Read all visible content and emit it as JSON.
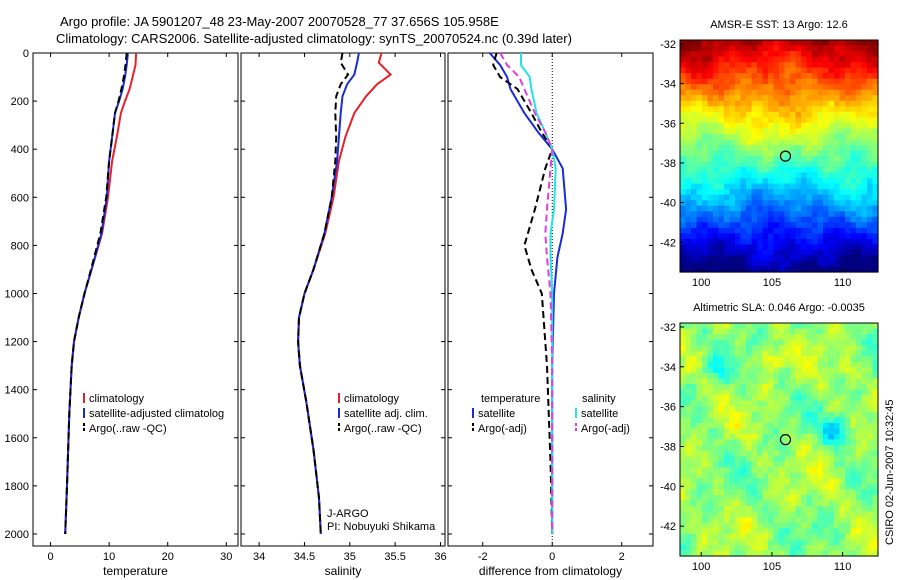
{
  "title_line1": "Argo profile: JA 5901207_48 23-May-2007 20070528_77 37.656S 105.958E",
  "title_line2": "Climatology: CARS2006. Satellite-adjusted climatology: synTS_20070524.nc (0.39d later)",
  "side_label": "CSIRO 02-Jun-2007 10:32:45",
  "colors": {
    "climatology": "#e8202a",
    "satellite": "#1a2bd6",
    "argo": "#000000",
    "sal_satellite": "#22e4e4",
    "sal_argo": "#e43ce0",
    "zero_line": "#000000"
  },
  "chart_data": [
    {
      "type": "line",
      "xlabel": "temperature",
      "xticks": [
        "0",
        "10",
        "20",
        "30"
      ],
      "xlim": [
        -3,
        32
      ],
      "ylim": [
        0,
        2050
      ],
      "yticks": [
        "0",
        "200",
        "400",
        "600",
        "800",
        "1000",
        "1200",
        "1400",
        "1600",
        "1800",
        "2000"
      ],
      "y_inverted": true,
      "legend": [
        "climatology",
        "satellite-adjusted climatolog",
        "Argo(..raw -QC)"
      ],
      "series": [
        {
          "name": "climatology",
          "color": "climatology",
          "dash": "solid",
          "x": [
            14.6,
            14.5,
            14.0,
            13.5,
            12.7,
            12.0,
            11.3,
            10.5,
            9.8,
            8.8,
            7.0,
            5.8,
            4.8,
            4.0,
            3.6,
            3.2,
            2.8,
            2.5
          ],
          "y": [
            0,
            50,
            100,
            150,
            200,
            250,
            350,
            450,
            600,
            750,
            900,
            1000,
            1100,
            1200,
            1300,
            1500,
            1800,
            2000
          ]
        },
        {
          "name": "satellite-adjusted climatolog",
          "color": "satellite",
          "dash": "solid",
          "x": [
            13.2,
            13.0,
            12.7,
            12.3,
            11.7,
            11.0,
            10.5,
            10.0,
            9.6,
            8.7,
            7.0,
            5.8,
            4.8,
            4.0,
            3.6,
            3.2,
            2.8,
            2.5
          ],
          "y": [
            0,
            50,
            100,
            150,
            200,
            250,
            350,
            450,
            600,
            750,
            900,
            1000,
            1100,
            1200,
            1300,
            1500,
            1800,
            2000
          ]
        },
        {
          "name": "Argo(..raw -QC)",
          "color": "argo",
          "dash": "dash",
          "x": [
            13.0,
            12.8,
            12.5,
            12.1,
            11.6,
            11.0,
            10.5,
            10.0,
            9.5,
            8.5,
            6.9,
            5.8,
            4.8,
            4.0,
            3.6,
            3.2,
            2.8,
            2.5
          ],
          "y": [
            0,
            50,
            100,
            150,
            200,
            250,
            350,
            450,
            600,
            750,
            900,
            1000,
            1100,
            1200,
            1300,
            1500,
            1800,
            2000
          ]
        }
      ]
    },
    {
      "type": "line",
      "xlabel": "salinity",
      "xticks": [
        "34",
        "34.5",
        "35",
        "35.5",
        "36"
      ],
      "xlim": [
        33.8,
        36.05
      ],
      "ylim": [
        0,
        2050
      ],
      "y_inverted": true,
      "legend": [
        "climatology",
        "satellite adj. clim.",
        "Argo(..raw -QC)"
      ],
      "annotation": [
        "J-ARGO",
        "PI: Nobuyuki Shikama"
      ],
      "series": [
        {
          "name": "climatology",
          "color": "climatology",
          "dash": "solid",
          "x": [
            35.35,
            35.32,
            35.45,
            35.3,
            35.18,
            35.05,
            34.95,
            34.88,
            34.82,
            34.73,
            34.6,
            34.5,
            34.44,
            34.43,
            34.45,
            34.52,
            34.6,
            34.66,
            34.68
          ],
          "y": [
            0,
            40,
            90,
            130,
            180,
            250,
            350,
            450,
            600,
            750,
            900,
            1000,
            1100,
            1200,
            1300,
            1450,
            1650,
            1850,
            2000
          ]
        },
        {
          "name": "satellite adj. clim.",
          "color": "satellite",
          "dash": "solid",
          "x": [
            35.1,
            35.08,
            35.05,
            34.97,
            34.92,
            34.9,
            34.88,
            34.86,
            34.8,
            34.72,
            34.6,
            34.5,
            34.44,
            34.43,
            34.45,
            34.52,
            34.6,
            34.66,
            34.68
          ],
          "y": [
            0,
            40,
            90,
            130,
            180,
            250,
            350,
            450,
            600,
            750,
            900,
            1000,
            1100,
            1200,
            1300,
            1450,
            1650,
            1850,
            2000
          ]
        },
        {
          "name": "Argo(..raw -QC)",
          "color": "argo",
          "dash": "dash",
          "x": [
            34.92,
            34.9,
            34.98,
            34.9,
            34.85,
            34.84,
            34.85,
            34.84,
            34.8,
            34.72,
            34.6,
            34.5,
            34.44,
            34.43,
            34.45,
            34.52,
            34.6,
            34.66,
            34.68
          ],
          "y": [
            0,
            40,
            90,
            130,
            180,
            250,
            350,
            450,
            600,
            750,
            900,
            1000,
            1100,
            1200,
            1300,
            1450,
            1650,
            1850,
            2000
          ]
        }
      ]
    },
    {
      "type": "line",
      "xlabel": "difference from climatology",
      "xticks": [
        "-2",
        "0",
        "2"
      ],
      "xlim": [
        -3.0,
        2.9
      ],
      "ylim": [
        0,
        2050
      ],
      "y_inverted": true,
      "legend_left": [
        "temperature",
        "satellite",
        "Argo(-adj)"
      ],
      "legend_right": [
        "salinity",
        "satellite",
        "Argo(-adj)"
      ],
      "series": [
        {
          "name": "temperature satellite",
          "color": "satellite",
          "dash": "solid",
          "x": [
            -1.8,
            -1.5,
            -1.3,
            -1.2,
            -0.8,
            -0.4,
            0.0,
            0.3,
            0.4,
            0.3,
            0.15,
            0.05,
            0.0,
            0.0,
            0.0
          ],
          "y": [
            0,
            50,
            100,
            150,
            250,
            330,
            400,
            480,
            650,
            750,
            850,
            1000,
            1300,
            1700,
            2000
          ]
        },
        {
          "name": "temperature Argo(-adj)",
          "color": "argo",
          "dash": "dash",
          "x": [
            -1.6,
            -1.7,
            -1.5,
            -1.0,
            -0.6,
            -0.3,
            0.0,
            -0.2,
            -0.5,
            -0.8,
            -0.6,
            -0.3,
            -0.15,
            -0.05,
            0.0
          ],
          "y": [
            0,
            50,
            100,
            150,
            250,
            330,
            400,
            480,
            650,
            800,
            900,
            1000,
            1300,
            1700,
            2000
          ]
        },
        {
          "name": "salinity satellite",
          "color": "sal_satellite",
          "dash": "solid",
          "x": [
            -0.9,
            -0.9,
            -0.65,
            -0.6,
            -0.45,
            -0.2,
            0.0,
            0.1,
            0.05,
            -0.05,
            -0.05,
            0.0,
            0.0,
            0.0,
            0.0
          ],
          "y": [
            0,
            50,
            100,
            150,
            250,
            330,
            400,
            480,
            650,
            750,
            850,
            1000,
            1300,
            1700,
            2000
          ]
        },
        {
          "name": "salinity Argo(-adj)",
          "color": "sal_argo",
          "dash": "dash",
          "x": [
            -1.5,
            -1.3,
            -0.95,
            -0.8,
            -0.5,
            -0.2,
            0.0,
            -0.05,
            -0.15,
            -0.2,
            -0.15,
            -0.05,
            0.0,
            0.0,
            0.0
          ],
          "y": [
            0,
            50,
            100,
            150,
            250,
            330,
            400,
            480,
            650,
            750,
            850,
            1000,
            1300,
            1700,
            2000
          ]
        }
      ]
    },
    {
      "type": "heatmap",
      "title": "AMSR-E SST: 13 Argo: 12.6",
      "xticks": [
        "100",
        "105",
        "110"
      ],
      "yticks": [
        "-32",
        "-34",
        "-36",
        "-38",
        "-40",
        "-42"
      ],
      "xlim": [
        98.5,
        112.5
      ],
      "ylim": [
        -43.5,
        -31.8
      ],
      "marker": {
        "lon": 105.958,
        "lat": -37.656
      }
    },
    {
      "type": "heatmap",
      "title": "Altimetric SLA: 0.046 Argo: -0.0035",
      "xticks": [
        "100",
        "105",
        "110"
      ],
      "yticks": [
        "-32",
        "-34",
        "-36",
        "-38",
        "-40",
        "-42"
      ],
      "xlim": [
        98.5,
        112.5
      ],
      "ylim": [
        -43.5,
        -31.8
      ],
      "marker": {
        "lon": 105.958,
        "lat": -37.656
      }
    }
  ]
}
